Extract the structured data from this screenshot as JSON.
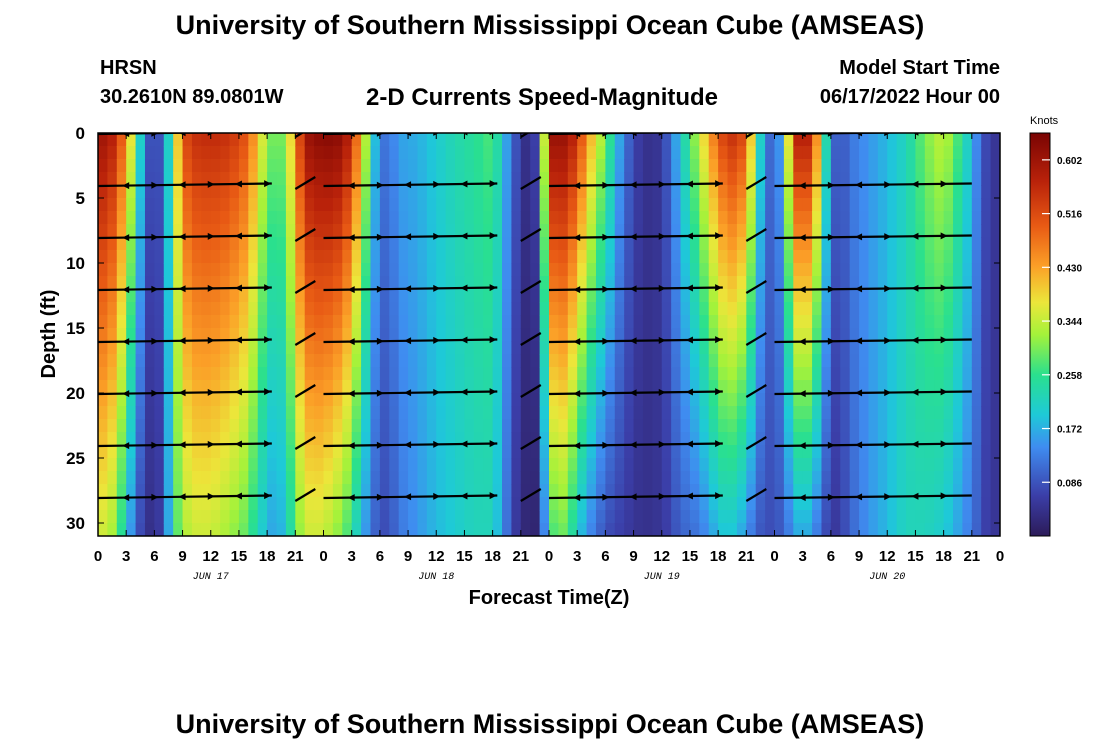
{
  "header": {
    "title": "University of Southern Mississippi Ocean Cube (AMSEAS)",
    "station": "HRSN",
    "coordinates": "30.2610N  89.0801W",
    "subtitle": "2-D Currents Speed-Magnitude",
    "model_start_label": "Model Start Time",
    "model_start_value": "06/17/2022 Hour 00"
  },
  "footer": {
    "title": "University of Southern Mississippi Ocean Cube (AMSEAS)"
  },
  "chart_data": {
    "type": "heatmap",
    "title": "2-D Currents Speed-Magnitude",
    "xlabel": "Forecast Time(Z)",
    "ylabel": "Depth (ft)",
    "x_range_hours": [
      0,
      96
    ],
    "ylim": [
      0,
      31
    ],
    "x_ticks": [
      {
        "hour": 0,
        "label": "0"
      },
      {
        "hour": 3,
        "label": "3"
      },
      {
        "hour": 6,
        "label": "6"
      },
      {
        "hour": 9,
        "label": "9"
      },
      {
        "hour": 12,
        "label": "12"
      },
      {
        "hour": 15,
        "label": "15"
      },
      {
        "hour": 18,
        "label": "18"
      },
      {
        "hour": 21,
        "label": "21"
      },
      {
        "hour": 24,
        "label": "0"
      },
      {
        "hour": 27,
        "label": "3"
      },
      {
        "hour": 30,
        "label": "6"
      },
      {
        "hour": 33,
        "label": "9"
      },
      {
        "hour": 36,
        "label": "12"
      },
      {
        "hour": 39,
        "label": "15"
      },
      {
        "hour": 42,
        "label": "18"
      },
      {
        "hour": 45,
        "label": "21"
      },
      {
        "hour": 48,
        "label": "0"
      },
      {
        "hour": 51,
        "label": "3"
      },
      {
        "hour": 54,
        "label": "6"
      },
      {
        "hour": 57,
        "label": "9"
      },
      {
        "hour": 60,
        "label": "12"
      },
      {
        "hour": 63,
        "label": "15"
      },
      {
        "hour": 66,
        "label": "18"
      },
      {
        "hour": 69,
        "label": "21"
      },
      {
        "hour": 72,
        "label": "0"
      },
      {
        "hour": 75,
        "label": "3"
      },
      {
        "hour": 78,
        "label": "6"
      },
      {
        "hour": 81,
        "label": "9"
      },
      {
        "hour": 84,
        "label": "12"
      },
      {
        "hour": 87,
        "label": "15"
      },
      {
        "hour": 90,
        "label": "18"
      },
      {
        "hour": 93,
        "label": "21"
      },
      {
        "hour": 96,
        "label": "0"
      }
    ],
    "day_labels": [
      {
        "hour": 12,
        "label": "JUN 17"
      },
      {
        "hour": 36,
        "label": "JUN 18"
      },
      {
        "hour": 60,
        "label": "JUN 19"
      },
      {
        "hour": 84,
        "label": "JUN 20"
      }
    ],
    "y_ticks": [
      0,
      5,
      10,
      15,
      20,
      25,
      30
    ],
    "colorbar": {
      "title": "Knots",
      "min": 0.0,
      "max": 0.645,
      "ticks": [
        "0.602",
        "0.516",
        "0.430",
        "0.344",
        "0.258",
        "0.172",
        "0.086"
      ],
      "tick_values": [
        0.602,
        0.516,
        0.43,
        0.344,
        0.258,
        0.172,
        0.086
      ]
    },
    "speed_profile": {
      "hours": [
        0,
        1,
        2,
        3,
        4,
        5,
        6,
        7,
        8,
        9,
        10,
        12,
        14,
        16,
        17,
        18,
        19,
        20,
        21,
        22,
        23,
        24,
        25,
        26,
        27,
        28,
        29,
        30,
        31,
        32,
        34,
        36,
        38,
        40,
        42,
        43,
        44,
        45,
        46,
        47,
        48,
        49,
        50,
        51,
        52,
        54,
        56,
        58,
        60,
        62,
        64,
        66,
        67,
        68,
        69,
        70,
        71,
        72,
        73,
        74,
        75,
        76,
        77,
        78,
        79,
        80,
        82,
        84,
        86,
        88,
        90,
        92,
        93,
        94,
        95,
        96
      ],
      "surface": [
        0.6,
        0.6,
        0.55,
        0.45,
        0.3,
        0.12,
        0.05,
        0.12,
        0.3,
        0.5,
        0.55,
        0.56,
        0.55,
        0.5,
        0.4,
        0.32,
        0.28,
        0.32,
        0.45,
        0.6,
        0.62,
        0.63,
        0.63,
        0.62,
        0.55,
        0.42,
        0.25,
        0.12,
        0.12,
        0.16,
        0.17,
        0.2,
        0.23,
        0.25,
        0.28,
        0.2,
        0.12,
        0.05,
        0.03,
        0.1,
        0.6,
        0.62,
        0.6,
        0.55,
        0.45,
        0.3,
        0.12,
        0.04,
        0.05,
        0.2,
        0.35,
        0.5,
        0.55,
        0.55,
        0.5,
        0.3,
        0.12,
        0.1,
        0.2,
        0.55,
        0.6,
        0.55,
        0.35,
        0.12,
        0.08,
        0.12,
        0.15,
        0.18,
        0.22,
        0.3,
        0.35,
        0.25,
        0.18,
        0.1,
        0.05,
        0.05
      ],
      "bottom": [
        0.35,
        0.35,
        0.3,
        0.2,
        0.1,
        0.05,
        0.03,
        0.08,
        0.25,
        0.32,
        0.35,
        0.35,
        0.32,
        0.28,
        0.22,
        0.18,
        0.15,
        0.2,
        0.28,
        0.35,
        0.35,
        0.35,
        0.32,
        0.3,
        0.25,
        0.18,
        0.12,
        0.08,
        0.08,
        0.12,
        0.15,
        0.18,
        0.2,
        0.22,
        0.22,
        0.15,
        0.08,
        0.03,
        0.02,
        0.02,
        0.25,
        0.3,
        0.28,
        0.2,
        0.15,
        0.08,
        0.06,
        0.04,
        0.05,
        0.1,
        0.12,
        0.18,
        0.2,
        0.18,
        0.15,
        0.1,
        0.08,
        0.08,
        0.1,
        0.15,
        0.18,
        0.15,
        0.1,
        0.05,
        0.06,
        0.1,
        0.15,
        0.18,
        0.22,
        0.22,
        0.2,
        0.15,
        0.12,
        0.08,
        0.05,
        0.05
      ]
    },
    "vector_depths_ft": [
      0,
      4,
      8,
      12,
      16,
      20,
      24,
      28
    ]
  }
}
